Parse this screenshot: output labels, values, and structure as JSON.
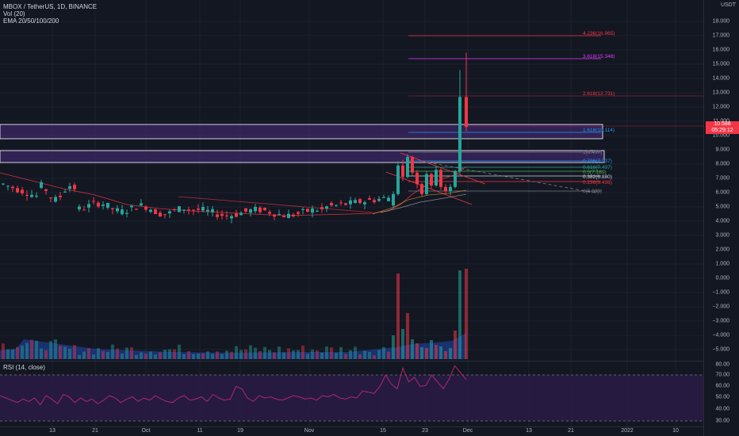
{
  "header": {
    "symbol_line": "MBOX / TetherUS, 1D, BINANCE",
    "vol_line": "Vol (20)",
    "ema_line": "EMA 20/50/100/200"
  },
  "colors": {
    "background": "#131722",
    "bull": "#26a69a",
    "bear": "#f23645",
    "zone": "#4a2b7d",
    "rsi_bg": "#2a1b45",
    "rsi_line": "#b0276f"
  },
  "price_axis": {
    "unit": "USDT",
    "ticks": [
      "18.000",
      "17.000",
      "16.000",
      "15.000",
      "14.000",
      "13.000",
      "12.000",
      "11.000",
      "10.000",
      "9.000",
      "8.000",
      "7.000",
      "6.000",
      "5.000",
      "4.000",
      "3.000",
      "2.000",
      "1.000",
      "0.000",
      "−1.000",
      "−2.000",
      "−3.000",
      "−4.000",
      "−5.000"
    ],
    "last_price": "10.588",
    "last_price_sub": "05:29:12"
  },
  "rsi": {
    "label": "RSI (14, close)",
    "ticks": [
      "80.00",
      "70.00",
      "60.00",
      "50.00",
      "40.00",
      "30.00"
    ]
  },
  "fib_labels": [
    {
      "text": "4.236(16.965)",
      "color": "#f23645"
    },
    {
      "text": "3.618(15.348)",
      "color": "#e040fb"
    },
    {
      "text": "2.618(12.731)",
      "color": "#f23645"
    },
    {
      "text": "1.618(10.114)",
      "color": "#2196f3"
    },
    {
      "text": "1(8.497)",
      "color": "#787b86"
    },
    {
      "text": "0.786(7.937)",
      "color": "#2196f3"
    },
    {
      "text": "0.618(7.497)",
      "color": "#26a69a"
    },
    {
      "text": "0.5(7.189)",
      "color": "#4caf50"
    },
    {
      "text": "0.382(6.880)",
      "color": "#d1d4dc"
    },
    {
      "text": "0.236(6.498)",
      "color": "#f23645"
    },
    {
      "text": "0(5.880)",
      "color": "#787b86"
    }
  ],
  "time_axis": [
    "13",
    "21",
    "Oct",
    "11",
    "19",
    "Nov",
    "15",
    "23",
    "Dec",
    "13",
    "21",
    "2022",
    "10"
  ]
}
